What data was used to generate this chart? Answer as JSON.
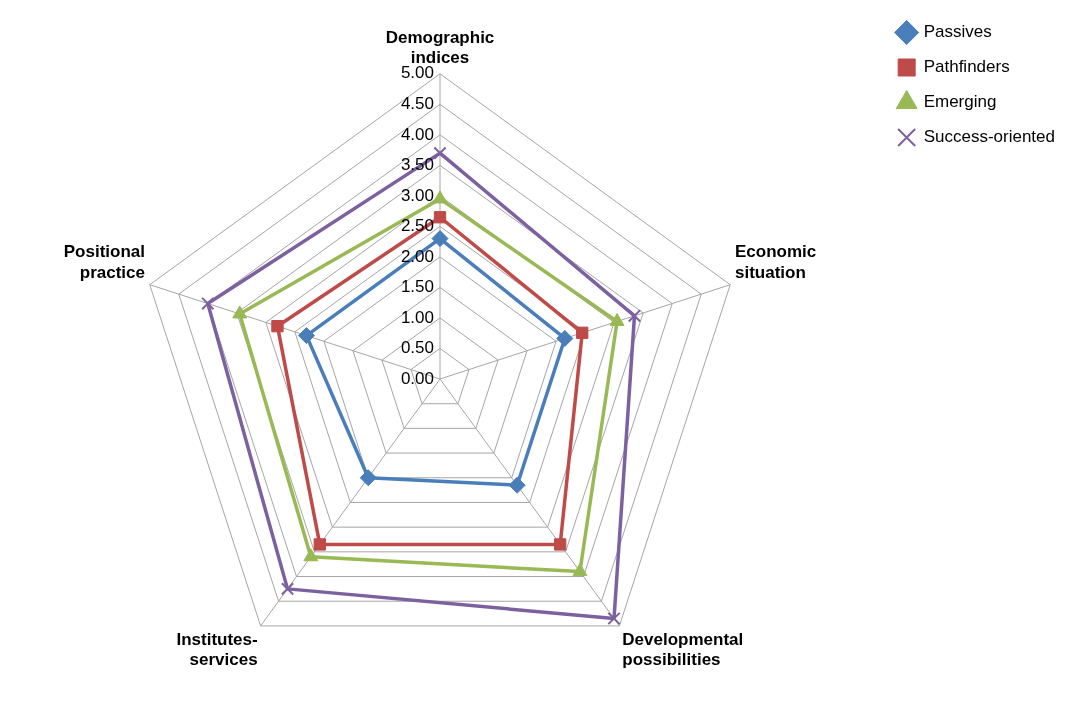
{
  "chart_data": {
    "type": "radar",
    "categories": [
      "Demographic indices",
      "Economic situation",
      "Developmental possibilities",
      "Institutes-services",
      "Positional practice"
    ],
    "series": [
      {
        "name": "Passives",
        "color": "#4a7ebb",
        "marker": "diamond",
        "values": [
          2.3,
          2.15,
          2.15,
          2.0,
          2.3
        ]
      },
      {
        "name": "Pathfinders",
        "color": "#be4b48",
        "marker": "square",
        "values": [
          2.65,
          2.45,
          3.35,
          3.35,
          2.8
        ]
      },
      {
        "name": "Emerging",
        "color": "#98b954",
        "marker": "triangle",
        "values": [
          2.95,
          3.05,
          3.9,
          3.6,
          3.45
        ]
      },
      {
        "name": "Success-oriented",
        "color": "#7d60a0",
        "marker": "cross",
        "values": [
          3.7,
          3.35,
          4.85,
          4.25,
          4.0
        ]
      }
    ],
    "ylim": [
      0,
      5
    ],
    "yticks": [
      {
        "value": 0,
        "label": "0.00"
      },
      {
        "value": 0.5,
        "label": "0.50"
      },
      {
        "value": 1,
        "label": "1.00"
      },
      {
        "value": 1.5,
        "label": "1.50"
      },
      {
        "value": 2,
        "label": "2.00"
      },
      {
        "value": 2.5,
        "label": "2.50"
      },
      {
        "value": 3,
        "label": "3.00"
      },
      {
        "value": 3.5,
        "label": "3.50"
      },
      {
        "value": 4,
        "label": "4.00"
      },
      {
        "value": 4.5,
        "label": "4.50"
      },
      {
        "value": 5,
        "label": "5.00"
      }
    ],
    "grid": true,
    "legend": "top right",
    "line_style": "solid"
  }
}
